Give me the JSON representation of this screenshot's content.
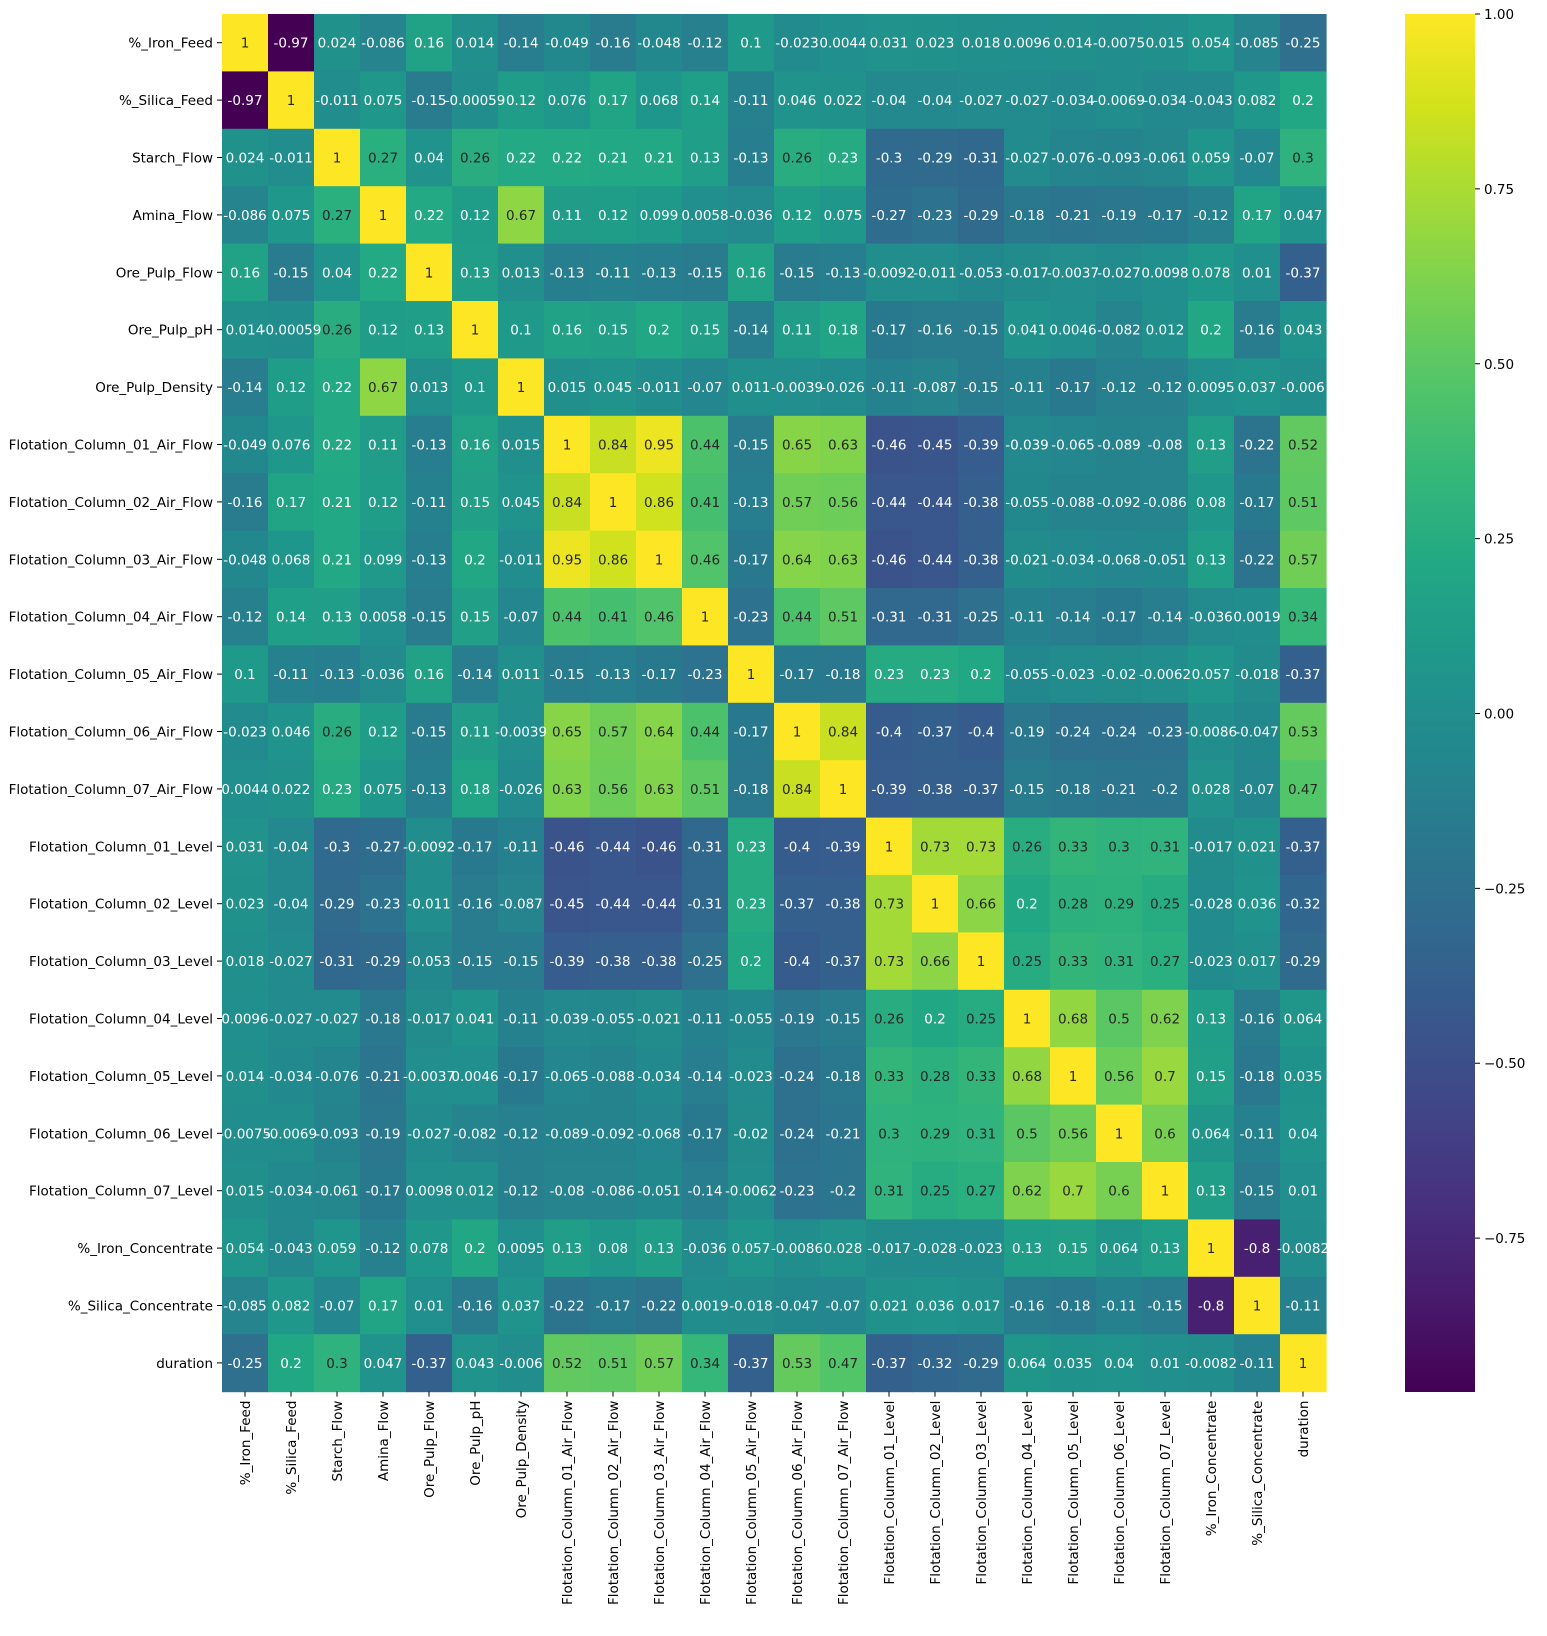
{
  "chart_data": {
    "type": "heatmap",
    "colormap": "viridis",
    "colorbar": {
      "vmin": -0.97,
      "vmax": 1.0,
      "ticks": [
        1.0,
        0.75,
        0.5,
        0.25,
        0.0,
        -0.25,
        -0.5,
        -0.75
      ],
      "tick_labels": [
        "1.00",
        "0.75",
        "0.50",
        "0.25",
        "0.00",
        "−0.25",
        "−0.50",
        "−0.75"
      ]
    },
    "labels": [
      "%_Iron_Feed",
      "%_Silica_Feed",
      "Starch_Flow",
      "Amina_Flow",
      "Ore_Pulp_Flow",
      "Ore_Pulp_pH",
      "Ore_Pulp_Density",
      "Flotation_Column_01_Air_Flow",
      "Flotation_Column_02_Air_Flow",
      "Flotation_Column_03_Air_Flow",
      "Flotation_Column_04_Air_Flow",
      "Flotation_Column_05_Air_Flow",
      "Flotation_Column_06_Air_Flow",
      "Flotation_Column_07_Air_Flow",
      "Flotation_Column_01_Level",
      "Flotation_Column_02_Level",
      "Flotation_Column_03_Level",
      "Flotation_Column_04_Level",
      "Flotation_Column_05_Level",
      "Flotation_Column_06_Level",
      "Flotation_Column_07_Level",
      "%_Iron_Concentrate",
      "%_Silica_Concentrate",
      "duration"
    ],
    "values": [
      [
        1,
        -0.97,
        0.024,
        -0.086,
        0.16,
        0.014,
        -0.14,
        -0.049,
        -0.16,
        -0.048,
        -0.12,
        0.1,
        -0.023,
        0.0044,
        0.031,
        0.023,
        0.018,
        0.0096,
        0.014,
        -0.0075,
        0.015,
        0.054,
        -0.085,
        -0.25
      ],
      [
        -0.97,
        1,
        -0.011,
        0.075,
        -0.15,
        -0.00059,
        0.12,
        0.076,
        0.17,
        0.068,
        0.14,
        -0.11,
        0.046,
        0.022,
        -0.04,
        -0.04,
        -0.027,
        -0.027,
        -0.034,
        -0.0069,
        -0.034,
        -0.043,
        0.082,
        0.2
      ],
      [
        0.024,
        -0.011,
        1,
        0.27,
        0.04,
        0.26,
        0.22,
        0.22,
        0.21,
        0.21,
        0.13,
        -0.13,
        0.26,
        0.23,
        -0.3,
        -0.29,
        -0.31,
        -0.027,
        -0.076,
        -0.093,
        -0.061,
        0.059,
        -0.07,
        0.3
      ],
      [
        -0.086,
        0.075,
        0.27,
        1,
        0.22,
        0.12,
        0.67,
        0.11,
        0.12,
        0.099,
        0.0058,
        -0.036,
        0.12,
        0.075,
        -0.27,
        -0.23,
        -0.29,
        -0.18,
        -0.21,
        -0.19,
        -0.17,
        -0.12,
        0.17,
        0.047
      ],
      [
        0.16,
        -0.15,
        0.04,
        0.22,
        1,
        0.13,
        0.013,
        -0.13,
        -0.11,
        -0.13,
        -0.15,
        0.16,
        -0.15,
        -0.13,
        -0.0092,
        -0.011,
        -0.053,
        -0.017,
        -0.0037,
        -0.027,
        0.0098,
        0.078,
        0.01,
        -0.37
      ],
      [
        0.014,
        -0.00059,
        0.26,
        0.12,
        0.13,
        1,
        0.1,
        0.16,
        0.15,
        0.2,
        0.15,
        -0.14,
        0.11,
        0.18,
        -0.17,
        -0.16,
        -0.15,
        0.041,
        0.0046,
        -0.082,
        0.012,
        0.2,
        -0.16,
        0.043
      ],
      [
        -0.14,
        0.12,
        0.22,
        0.67,
        0.013,
        0.1,
        1,
        0.015,
        0.045,
        -0.011,
        -0.07,
        0.011,
        -0.0039,
        -0.026,
        -0.11,
        -0.087,
        -0.15,
        -0.11,
        -0.17,
        -0.12,
        -0.12,
        0.0095,
        0.037,
        -0.006
      ],
      [
        -0.049,
        0.076,
        0.22,
        0.11,
        -0.13,
        0.16,
        0.015,
        1,
        0.84,
        0.95,
        0.44,
        -0.15,
        0.65,
        0.63,
        -0.46,
        -0.45,
        -0.39,
        -0.039,
        -0.065,
        -0.089,
        -0.08,
        0.13,
        -0.22,
        0.52
      ],
      [
        -0.16,
        0.17,
        0.21,
        0.12,
        -0.11,
        0.15,
        0.045,
        0.84,
        1,
        0.86,
        0.41,
        -0.13,
        0.57,
        0.56,
        -0.44,
        -0.44,
        -0.38,
        -0.055,
        -0.088,
        -0.092,
        -0.086,
        0.08,
        -0.17,
        0.51
      ],
      [
        -0.048,
        0.068,
        0.21,
        0.099,
        -0.13,
        0.2,
        -0.011,
        0.95,
        0.86,
        1,
        0.46,
        -0.17,
        0.64,
        0.63,
        -0.46,
        -0.44,
        -0.38,
        -0.021,
        -0.034,
        -0.068,
        -0.051,
        0.13,
        -0.22,
        0.57
      ],
      [
        -0.12,
        0.14,
        0.13,
        0.0058,
        -0.15,
        0.15,
        -0.07,
        0.44,
        0.41,
        0.46,
        1,
        -0.23,
        0.44,
        0.51,
        -0.31,
        -0.31,
        -0.25,
        -0.11,
        -0.14,
        -0.17,
        -0.14,
        -0.036,
        0.0019,
        0.34
      ],
      [
        0.1,
        -0.11,
        -0.13,
        -0.036,
        0.16,
        -0.14,
        0.011,
        -0.15,
        -0.13,
        -0.17,
        -0.23,
        1,
        -0.17,
        -0.18,
        0.23,
        0.23,
        0.2,
        -0.055,
        -0.023,
        -0.02,
        -0.0062,
        0.057,
        -0.018,
        -0.37
      ],
      [
        -0.023,
        0.046,
        0.26,
        0.12,
        -0.15,
        0.11,
        -0.0039,
        0.65,
        0.57,
        0.64,
        0.44,
        -0.17,
        1,
        0.84,
        -0.4,
        -0.37,
        -0.4,
        -0.19,
        -0.24,
        -0.24,
        -0.23,
        -0.0086,
        -0.047,
        0.53
      ],
      [
        0.0044,
        0.022,
        0.23,
        0.075,
        -0.13,
        0.18,
        -0.026,
        0.63,
        0.56,
        0.63,
        0.51,
        -0.18,
        0.84,
        1,
        -0.39,
        -0.38,
        -0.37,
        -0.15,
        -0.18,
        -0.21,
        -0.2,
        0.028,
        -0.07,
        0.47
      ],
      [
        0.031,
        -0.04,
        -0.3,
        -0.27,
        -0.0092,
        -0.17,
        -0.11,
        -0.46,
        -0.44,
        -0.46,
        -0.31,
        0.23,
        -0.4,
        -0.39,
        1,
        0.73,
        0.73,
        0.26,
        0.33,
        0.3,
        0.31,
        -0.017,
        0.021,
        -0.37
      ],
      [
        0.023,
        -0.04,
        -0.29,
        -0.23,
        -0.011,
        -0.16,
        -0.087,
        -0.45,
        -0.44,
        -0.44,
        -0.31,
        0.23,
        -0.37,
        -0.38,
        0.73,
        1,
        0.66,
        0.2,
        0.28,
        0.29,
        0.25,
        -0.028,
        0.036,
        -0.32
      ],
      [
        0.018,
        -0.027,
        -0.31,
        -0.29,
        -0.053,
        -0.15,
        -0.15,
        -0.39,
        -0.38,
        -0.38,
        -0.25,
        0.2,
        -0.4,
        -0.37,
        0.73,
        0.66,
        1,
        0.25,
        0.33,
        0.31,
        0.27,
        -0.023,
        0.017,
        -0.29
      ],
      [
        0.0096,
        -0.027,
        -0.027,
        -0.18,
        -0.017,
        0.041,
        -0.11,
        -0.039,
        -0.055,
        -0.021,
        -0.11,
        -0.055,
        -0.19,
        -0.15,
        0.26,
        0.2,
        0.25,
        1,
        0.68,
        0.5,
        0.62,
        0.13,
        -0.16,
        0.064
      ],
      [
        0.014,
        -0.034,
        -0.076,
        -0.21,
        -0.0037,
        0.0046,
        -0.17,
        -0.065,
        -0.088,
        -0.034,
        -0.14,
        -0.023,
        -0.24,
        -0.18,
        0.33,
        0.28,
        0.33,
        0.68,
        1,
        0.56,
        0.7,
        0.15,
        -0.18,
        0.035
      ],
      [
        -0.0075,
        -0.0069,
        -0.093,
        -0.19,
        -0.027,
        -0.082,
        -0.12,
        -0.089,
        -0.092,
        -0.068,
        -0.17,
        -0.02,
        -0.24,
        -0.21,
        0.3,
        0.29,
        0.31,
        0.5,
        0.56,
        1,
        0.6,
        0.064,
        -0.11,
        0.04
      ],
      [
        0.015,
        -0.034,
        -0.061,
        -0.17,
        0.0098,
        0.012,
        -0.12,
        -0.08,
        -0.086,
        -0.051,
        -0.14,
        -0.0062,
        -0.23,
        -0.2,
        0.31,
        0.25,
        0.27,
        0.62,
        0.7,
        0.6,
        1,
        0.13,
        -0.15,
        0.01
      ],
      [
        0.054,
        -0.043,
        0.059,
        -0.12,
        0.078,
        0.2,
        0.0095,
        0.13,
        0.08,
        0.13,
        -0.036,
        0.057,
        -0.0086,
        0.028,
        -0.017,
        -0.028,
        -0.023,
        0.13,
        0.15,
        0.064,
        0.13,
        1,
        -0.8,
        -0.0082
      ],
      [
        -0.085,
        0.082,
        -0.07,
        0.17,
        0.01,
        -0.16,
        0.037,
        -0.22,
        -0.17,
        -0.22,
        0.0019,
        -0.018,
        -0.047,
        -0.07,
        0.021,
        0.036,
        0.017,
        -0.16,
        -0.18,
        -0.11,
        -0.15,
        -0.8,
        1,
        -0.11
      ],
      [
        -0.25,
        0.2,
        0.3,
        0.047,
        -0.37,
        0.043,
        -0.006,
        0.52,
        0.51,
        0.57,
        0.34,
        -0.37,
        0.53,
        0.47,
        -0.37,
        -0.32,
        -0.29,
        0.064,
        0.035,
        0.04,
        0.01,
        -0.0082,
        -0.11,
        1
      ]
    ]
  }
}
